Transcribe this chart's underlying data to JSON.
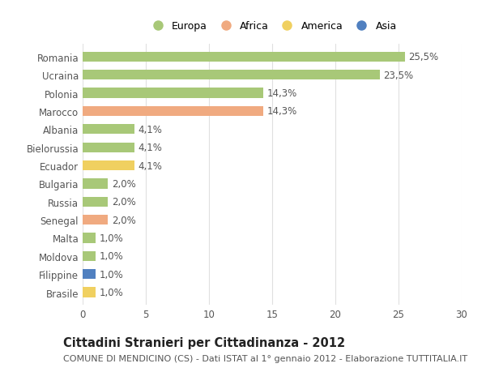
{
  "categories": [
    "Romania",
    "Ucraina",
    "Polonia",
    "Marocco",
    "Albania",
    "Bielorussia",
    "Ecuador",
    "Bulgaria",
    "Russia",
    "Senegal",
    "Malta",
    "Moldova",
    "Filippine",
    "Brasile"
  ],
  "values": [
    25.5,
    23.5,
    14.3,
    14.3,
    4.1,
    4.1,
    4.1,
    2.0,
    2.0,
    2.0,
    1.0,
    1.0,
    1.0,
    1.0
  ],
  "labels": [
    "25,5%",
    "23,5%",
    "14,3%",
    "14,3%",
    "4,1%",
    "4,1%",
    "4,1%",
    "2,0%",
    "2,0%",
    "2,0%",
    "1,0%",
    "1,0%",
    "1,0%",
    "1,0%"
  ],
  "continents": [
    "Europa",
    "Europa",
    "Europa",
    "Africa",
    "Europa",
    "Europa",
    "America",
    "Europa",
    "Europa",
    "Africa",
    "Europa",
    "Europa",
    "Asia",
    "America"
  ],
  "continent_colors": {
    "Europa": "#a8c878",
    "Africa": "#f0aa80",
    "America": "#f0d060",
    "Asia": "#5080c0"
  },
  "legend_order": [
    "Europa",
    "Africa",
    "America",
    "Asia"
  ],
  "title": "Cittadini Stranieri per Cittadinanza - 2012",
  "subtitle": "COMUNE DI MENDICINO (CS) - Dati ISTAT al 1° gennaio 2012 - Elaborazione TUTTITALIA.IT",
  "xlim": [
    0,
    30
  ],
  "xticks": [
    0,
    5,
    10,
    15,
    20,
    25,
    30
  ],
  "background_color": "#ffffff",
  "grid_color": "#e0e0e0",
  "bar_height": 0.55,
  "title_fontsize": 10.5,
  "subtitle_fontsize": 8,
  "tick_fontsize": 8.5,
  "label_fontsize": 8.5,
  "legend_fontsize": 9
}
